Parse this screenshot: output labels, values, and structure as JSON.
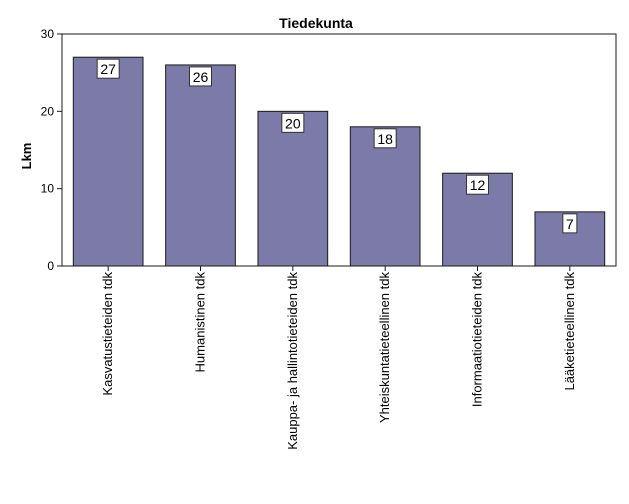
{
  "chart_data": {
    "type": "bar",
    "title": "Tiedekunta",
    "xlabel": "",
    "ylabel": "Lkm",
    "ylim": [
      0,
      30
    ],
    "yticks": [
      0,
      10,
      20,
      30
    ],
    "grid": false,
    "legend": "none",
    "categories": [
      "Kasvatustieteiden tdk",
      "Humanistinen tdk",
      "Kauppa- ja hallintotieteiden tdk",
      "Yhteiskuntatieteellinen tdk",
      "Informaatiotieteiden tdk",
      "Lääketieteellinen tdk"
    ],
    "values": [
      27,
      26,
      20,
      18,
      12,
      7
    ],
    "colors": {
      "bar": "#7b7aa8",
      "bar_stroke": "#1a1a1a",
      "plot_border": "#1a1a1a",
      "label_box": "#ffffff"
    }
  }
}
